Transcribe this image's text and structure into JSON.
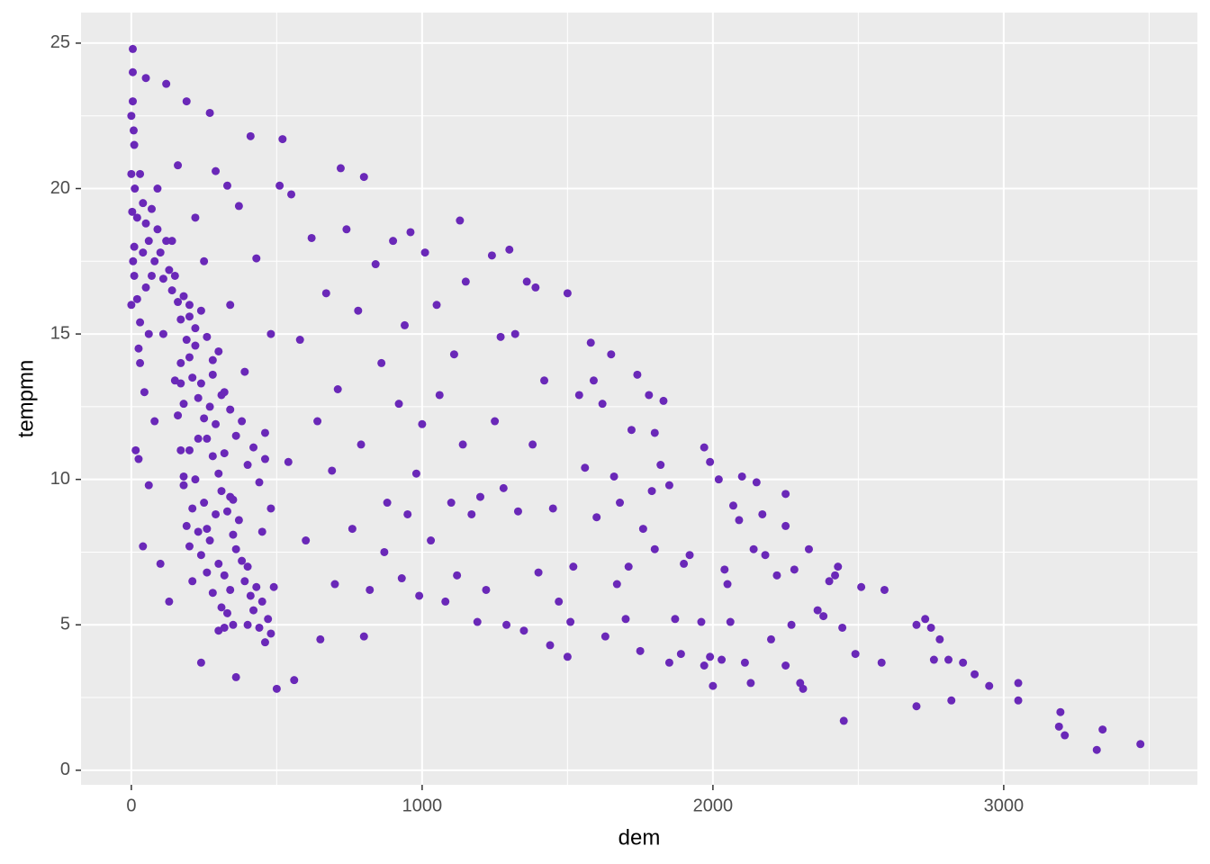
{
  "chart_data": {
    "type": "scatter",
    "x_label": "dem",
    "y_label": "tempmn",
    "color": "#6a28b8",
    "grid": true,
    "xlim": [
      -173,
      3666
    ],
    "ylim": [
      -0.5,
      26.05
    ],
    "xticks": [
      0,
      1000,
      2000,
      3000
    ],
    "yticks": [
      0,
      5,
      10,
      15,
      20,
      25
    ],
    "x_minor_grid": [
      500,
      1500,
      2500,
      3500
    ],
    "y_minor_grid": [
      2.5,
      7.5,
      12.5,
      17.5,
      22.5
    ],
    "x": [
      3470,
      3340,
      3320,
      3210,
      3190,
      3195,
      3050,
      3050,
      2950,
      2900,
      2860,
      2820,
      2810,
      2780,
      2760,
      2750,
      2730,
      2700,
      2700,
      2590,
      2580,
      2510,
      2490,
      2450,
      2445,
      2430,
      2420,
      2400,
      2380,
      2360,
      2330,
      2310,
      2300,
      2280,
      2270,
      2250,
      2250,
      2250,
      2220,
      2200,
      2180,
      2170,
      2150,
      2140,
      2130,
      2110,
      2100,
      2090,
      2070,
      2060,
      2050,
      2040,
      2030,
      2020,
      1990,
      2000,
      1990,
      1970,
      1970,
      1960,
      1920,
      1900,
      1890,
      1870,
      1850,
      1850,
      1830,
      1820,
      1800,
      1800,
      1790,
      1780,
      1760,
      1750,
      1740,
      1720,
      1710,
      1700,
      1680,
      1670,
      1660,
      1650,
      1630,
      1620,
      1600,
      1590,
      1580,
      1560,
      1540,
      1520,
      1510,
      1500,
      1500,
      1470,
      1450,
      1440,
      1420,
      1400,
      1390,
      1380,
      1360,
      1350,
      1330,
      1320,
      1300,
      1290,
      1280,
      1270,
      1250,
      1240,
      1220,
      1200,
      1190,
      1170,
      1150,
      1140,
      1130,
      1120,
      1110,
      1100,
      1080,
      1060,
      1050,
      1030,
      1010,
      1000,
      990,
      980,
      960,
      950,
      940,
      930,
      920,
      900,
      880,
      870,
      860,
      840,
      820,
      800,
      800,
      790,
      780,
      760,
      740,
      720,
      710,
      700,
      690,
      670,
      650,
      640,
      620,
      600,
      580,
      560,
      550,
      540,
      520,
      510,
      500,
      490,
      480,
      460,
      450,
      430,
      410,
      400,
      390,
      370,
      360,
      350,
      340,
      330,
      320,
      310,
      300,
      290,
      280,
      270,
      260,
      250,
      240,
      230,
      220,
      210,
      200,
      190,
      180,
      170,
      160,
      130,
      140,
      120,
      110,
      100,
      90,
      80,
      70,
      60,
      50,
      40,
      30,
      20,
      10,
      5,
      5,
      0,
      0,
      10,
      15,
      25,
      0,
      30,
      40,
      50,
      60,
      70,
      80,
      90,
      100,
      110,
      120,
      130,
      140,
      150,
      160,
      170,
      180,
      190,
      200,
      210,
      220,
      230,
      240,
      250,
      260,
      270,
      280,
      290,
      300,
      310,
      320,
      330,
      340,
      350,
      360,
      370,
      380,
      390,
      400,
      410,
      420,
      430,
      440,
      450,
      460,
      470,
      480,
      10,
      20,
      30,
      40,
      50,
      60,
      25,
      45,
      200,
      210,
      220,
      230,
      240,
      250,
      260,
      270,
      280,
      290,
      300,
      310,
      320,
      330,
      340,
      350,
      200,
      220,
      240,
      260,
      280,
      300,
      320,
      340,
      360,
      380,
      400,
      420,
      440,
      460,
      480,
      150,
      160,
      170,
      180,
      190,
      200,
      180,
      170,
      5,
      8,
      12,
      3,
      6
    ],
    "values": [
      0.9,
      1.4,
      0.7,
      1.2,
      1.5,
      2.0,
      2.4,
      3.0,
      2.9,
      3.3,
      3.7,
      2.4,
      3.8,
      4.5,
      3.8,
      4.9,
      5.2,
      5.0,
      2.2,
      6.2,
      3.7,
      6.3,
      4.0,
      1.7,
      4.9,
      7.0,
      6.7,
      6.5,
      5.3,
      5.5,
      7.6,
      2.8,
      3.0,
      6.9,
      5.0,
      9.5,
      3.6,
      8.4,
      6.7,
      4.5,
      7.4,
      8.8,
      9.9,
      7.6,
      3.0,
      3.7,
      10.1,
      8.6,
      9.1,
      5.1,
      6.4,
      6.9,
      3.8,
      10.0,
      3.9,
      2.9,
      10.6,
      11.1,
      3.6,
      5.1,
      7.4,
      7.1,
      4.0,
      5.2,
      9.8,
      3.7,
      12.7,
      10.5,
      11.6,
      7.6,
      9.6,
      12.9,
      8.3,
      4.1,
      13.6,
      11.7,
      7.0,
      5.2,
      9.2,
      6.4,
      10.1,
      14.3,
      4.6,
      12.6,
      8.7,
      13.4,
      14.7,
      10.4,
      12.9,
      7.0,
      5.1,
      3.9,
      16.4,
      5.8,
      9.0,
      4.3,
      13.4,
      6.8,
      16.6,
      11.2,
      16.8,
      4.8,
      8.9,
      15.0,
      17.9,
      5.0,
      9.7,
      14.9,
      12.0,
      17.7,
      6.2,
      9.4,
      5.1,
      8.8,
      16.8,
      11.2,
      18.9,
      6.7,
      14.3,
      9.2,
      5.8,
      12.9,
      16.0,
      7.9,
      17.8,
      11.9,
      6.0,
      10.2,
      18.5,
      8.8,
      15.3,
      6.6,
      12.6,
      18.2,
      9.2,
      7.5,
      14.0,
      17.4,
      6.2,
      20.4,
      4.6,
      11.2,
      15.8,
      8.3,
      18.6,
      20.7,
      13.1,
      6.4,
      10.3,
      16.4,
      4.5,
      12.0,
      18.3,
      7.9,
      14.8,
      3.1,
      19.8,
      10.6,
      21.7,
      20.1,
      2.8,
      6.3,
      15.0,
      11.6,
      8.2,
      17.6,
      21.8,
      5.0,
      13.7,
      19.4,
      3.2,
      9.3,
      16.0,
      20.1,
      6.7,
      12.9,
      4.8,
      20.6,
      14.1,
      22.6,
      8.3,
      17.5,
      3.7,
      11.4,
      19.0,
      6.5,
      15.6,
      23.0,
      9.8,
      13.3,
      20.8,
      5.8,
      18.2,
      23.6,
      15.0,
      7.1,
      20.0,
      12.0,
      17.0,
      9.8,
      23.8,
      7.7,
      14.0,
      19.0,
      21.5,
      24.8,
      24.0,
      22.5,
      16.0,
      18.0,
      11.0,
      10.7,
      20.5,
      20.5,
      19.5,
      18.8,
      18.2,
      19.3,
      17.5,
      18.6,
      17.8,
      16.9,
      18.2,
      17.2,
      16.5,
      17.0,
      16.1,
      15.5,
      16.3,
      14.8,
      14.2,
      13.5,
      14.6,
      12.8,
      13.3,
      12.1,
      11.4,
      12.5,
      10.8,
      11.9,
      10.2,
      9.6,
      10.9,
      8.9,
      9.4,
      8.1,
      7.6,
      8.6,
      7.2,
      6.5,
      7.0,
      6.0,
      5.5,
      6.3,
      4.9,
      5.8,
      4.4,
      5.2,
      4.7,
      17.0,
      16.2,
      15.4,
      17.8,
      16.6,
      15.0,
      14.5,
      13.0,
      11.0,
      9.0,
      10.0,
      8.2,
      7.4,
      9.2,
      6.8,
      7.9,
      6.1,
      8.8,
      7.1,
      5.6,
      4.9,
      5.4,
      6.2,
      5.0,
      16.0,
      15.2,
      15.8,
      14.9,
      13.6,
      14.4,
      13.0,
      12.4,
      11.5,
      12.0,
      10.5,
      11.1,
      9.9,
      10.7,
      9.0,
      13.4,
      12.2,
      11.0,
      10.1,
      8.4,
      7.7,
      12.6,
      14.0,
      23.0,
      22.0,
      20.0,
      19.2,
      17.5
    ]
  }
}
